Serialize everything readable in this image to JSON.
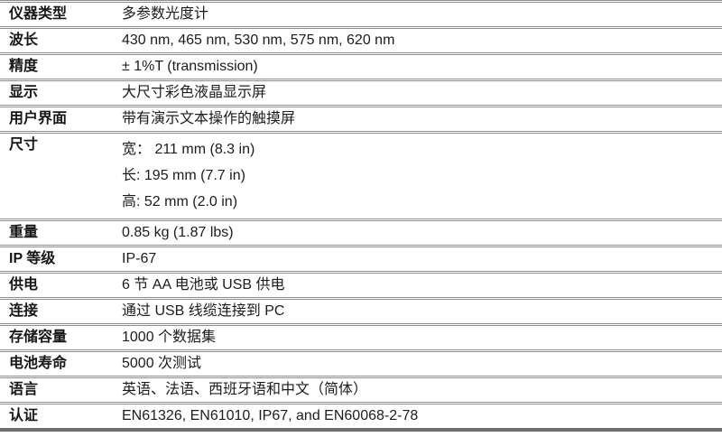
{
  "table": {
    "rows": [
      {
        "label": "仪器类型",
        "value": "多参数光度计"
      },
      {
        "label": "波长",
        "value": "430 nm, 465 nm, 530 nm, 575 nm, 620 nm"
      },
      {
        "label": "精度",
        "value": "± 1%T (transmission)"
      },
      {
        "label": "显示",
        "value": "大尺寸彩色液晶显示屏"
      },
      {
        "label": "用户界面",
        "value": "带有演示文本操作的触摸屏"
      },
      {
        "label": "尺寸",
        "lines": [
          "宽： 211 mm (8.3 in)",
          "长: 195 mm (7.7 in)",
          "高: 52 mm (2.0 in)"
        ]
      },
      {
        "label": "重量",
        "value": "0.85 kg (1.87 lbs)"
      },
      {
        "label": "IP 等级",
        "value": "IP-67"
      },
      {
        "label": "供电",
        "value": "6 节 AA 电池或 USB 供电"
      },
      {
        "label": "连接",
        "value": "通过 USB 线缆连接到 PC"
      },
      {
        "label": "存储容量",
        "value": "1000 个数据集"
      },
      {
        "label": "电池寿命",
        "value": "5000 次测试"
      },
      {
        "label": "语言",
        "value": "英语、法语、西班牙语和中文（简体）"
      },
      {
        "label": "认证",
        "value": "EN61326, EN61010, IP67, and EN60068-2-78"
      }
    ],
    "colors": {
      "separator_border": "#8e8e8e",
      "bottom_border": "#6e6e6e",
      "text": "#1c1c1c"
    }
  }
}
